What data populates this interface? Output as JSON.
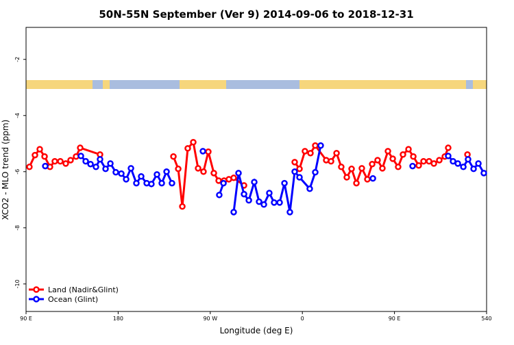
{
  "chart_data": {
    "type": "line",
    "title": "50N-55N September (Ver 9)   2014-09-06 to 2018-12-31",
    "xlabel": "Longitude (deg E)",
    "ylabel": "XCO2 - MLO trend (ppm)",
    "xlim": [
      90,
      540
    ],
    "ylim": [
      -10.98,
      -0.86
    ],
    "xticks": [
      {
        "value": 90,
        "label": "90 E"
      },
      180,
      {
        "value": 270,
        "label": "90 W"
      },
      {
        "value": 360,
        "label": "0"
      },
      {
        "value": 450,
        "label": "90 E"
      },
      540
    ],
    "yticks": [
      -10,
      -8,
      -6,
      -4,
      -2
    ],
    "legend": "lower left",
    "series": [
      {
        "name": "Land (Nadir&Glint)",
        "color": "#ff0000",
        "x": [
          93.3,
          98.7,
          103.4,
          108.1,
          113.4,
          118.1,
          123.5,
          128.8,
          133.5,
          138.9,
          142.9,
          162.3,
          null,
          234,
          238.7,
          242.7,
          248,
          253.4,
          258.1,
          263.4,
          268.1,
          273.5,
          278.2,
          283.5,
          288.2,
          292.9,
          303,
          null,
          352.5,
          357.2,
          362.5,
          367.9,
          372.6,
          383.3,
          388,
          393.4,
          398,
          403.4,
          408.1,
          412.8,
          418.1,
          423.5,
          428.2,
          433.5,
          438.2,
          443.6,
          448.3,
          453.6,
          458.3,
          463.7,
          468.4,
          473.7,
          478.4,
          483.8,
          488.5,
          493.8,
          499.2,
          502.5,
          null,
          521.3
        ],
        "values": [
          -5.83,
          -5.41,
          -5.2,
          -5.46,
          -5.83,
          -5.63,
          -5.63,
          -5.71,
          -5.59,
          -5.46,
          -5.15,
          -5.39,
          null,
          -5.46,
          -5.9,
          -7.24,
          -5.17,
          -4.95,
          -5.88,
          -6.0,
          -5.29,
          -6.05,
          -6.32,
          -6.32,
          -6.27,
          -6.22,
          -6.49,
          null,
          -5.66,
          -5.9,
          -5.27,
          -5.34,
          -5.07,
          -5.59,
          -5.63,
          -5.34,
          -5.83,
          -6.2,
          -5.9,
          -6.41,
          -5.88,
          -6.27,
          -5.73,
          -5.59,
          -5.88,
          -5.27,
          -5.54,
          -5.83,
          -5.39,
          -5.2,
          -5.46,
          -5.78,
          -5.63,
          -5.63,
          -5.71,
          -5.59,
          -5.46,
          -5.15,
          null,
          -5.39
        ]
      },
      {
        "name": "Ocean (Glint)",
        "color": "#0000ff",
        "x": [
          108.8,
          null,
          143.6,
          148.3,
          153,
          158.3,
          162.3,
          167.7,
          172.4,
          177.7,
          183.1,
          187.8,
          192.5,
          197.8,
          202.5,
          207.9,
          212.5,
          217.9,
          222.6,
          227.3,
          232.6,
          null,
          262.8,
          null,
          278.8,
          282.9,
          null,
          292.9,
          297.6,
          303,
          307.7,
          313,
          317.7,
          322.4,
          327.7,
          332.4,
          337.8,
          342.5,
          347.8,
          352.5,
          357.2,
          367.2,
          372.6,
          377.9,
          null,
          428.9,
          null,
          467.7,
          null,
          502.5,
          507.2,
          511.9,
          517.3,
          521.9,
          527.3,
          532,
          537.3
        ],
        "values": [
          -5.8,
          null,
          -5.44,
          -5.63,
          -5.73,
          -5.83,
          -5.56,
          -5.9,
          -5.71,
          -6.02,
          -6.07,
          -6.27,
          -5.88,
          -6.41,
          -6.17,
          -6.41,
          -6.44,
          -6.1,
          -6.41,
          -6.0,
          -6.41,
          null,
          -5.27,
          null,
          -6.83,
          -6.41,
          null,
          -7.44,
          -6.05,
          -6.8,
          -7.02,
          -6.37,
          -7.07,
          -7.17,
          -6.76,
          -7.1,
          -7.1,
          -6.41,
          -7.44,
          -6.0,
          -6.2,
          -6.61,
          -6.02,
          -5.07,
          null,
          -6.24,
          null,
          -5.8,
          null,
          -5.44,
          -5.63,
          -5.71,
          -5.83,
          -5.56,
          -5.9,
          -5.71,
          -6.05
        ]
      }
    ]
  }
}
